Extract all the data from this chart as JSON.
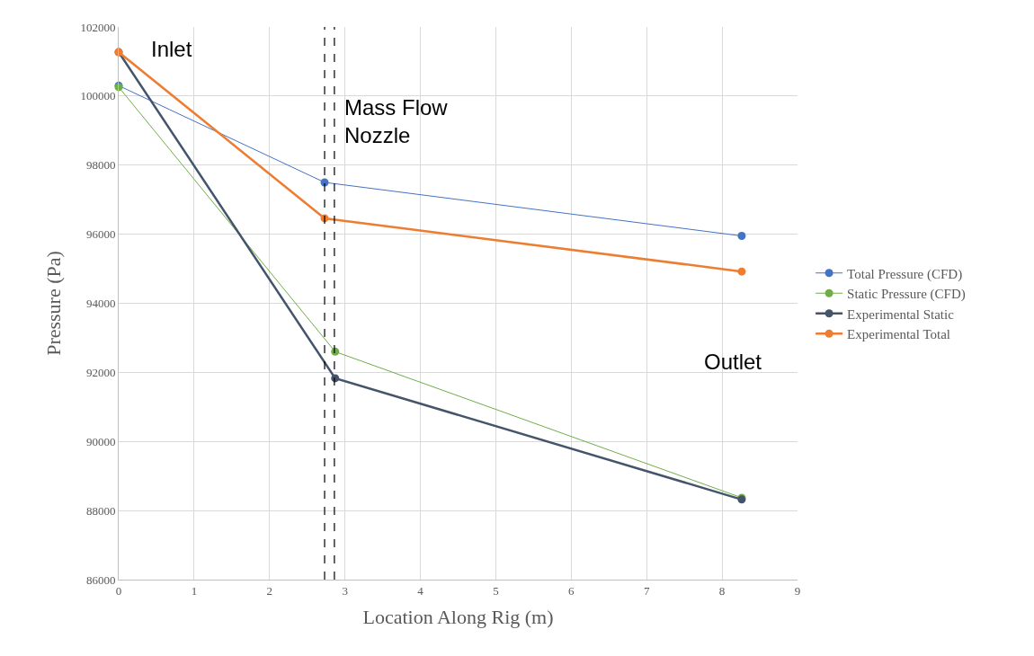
{
  "chart_data": {
    "type": "line",
    "xlabel": "Location Along Rig (m)",
    "ylabel": "Pressure (Pa)",
    "series": [
      {
        "name": "Total Pressure (CFD)",
        "color": "#4472c4",
        "x": [
          0,
          2.73,
          8.26
        ],
        "values": [
          100300,
          97500,
          95950
        ]
      },
      {
        "name": "Static Pressure (CFD)",
        "color": "#70ad47",
        "x": [
          0,
          2.87,
          8.26
        ],
        "values": [
          100260,
          92600,
          88370
        ]
      },
      {
        "name": "Experimental Static",
        "color": "#44546a",
        "x": [
          0,
          2.87,
          8.26
        ],
        "values": [
          101270,
          91830,
          88320
        ]
      },
      {
        "name": "Experimental Total",
        "color": "#ed7d31",
        "x": [
          0,
          2.73,
          8.26
        ],
        "values": [
          101270,
          96460,
          94920
        ]
      }
    ],
    "xlim": [
      0,
      9
    ],
    "xticks": [
      0,
      1,
      2,
      3,
      4,
      5,
      6,
      7,
      8,
      9
    ],
    "ylim": [
      86000,
      102000
    ],
    "yticks": [
      86000,
      88000,
      90000,
      92000,
      94000,
      96000,
      98000,
      100000,
      102000
    ],
    "ref_lines": [
      {
        "axis": "x",
        "value": 2.73,
        "color": "#000000",
        "line_style": "dashed"
      },
      {
        "axis": "x",
        "value": 2.86,
        "color": "#000000",
        "line_style": "dashed"
      }
    ],
    "annotations": [
      "Inlet",
      "Mass Flow\nNozzle",
      "Outlet"
    ],
    "grid": true,
    "legend": "right",
    "marker": "circle",
    "line_style": "solid"
  }
}
